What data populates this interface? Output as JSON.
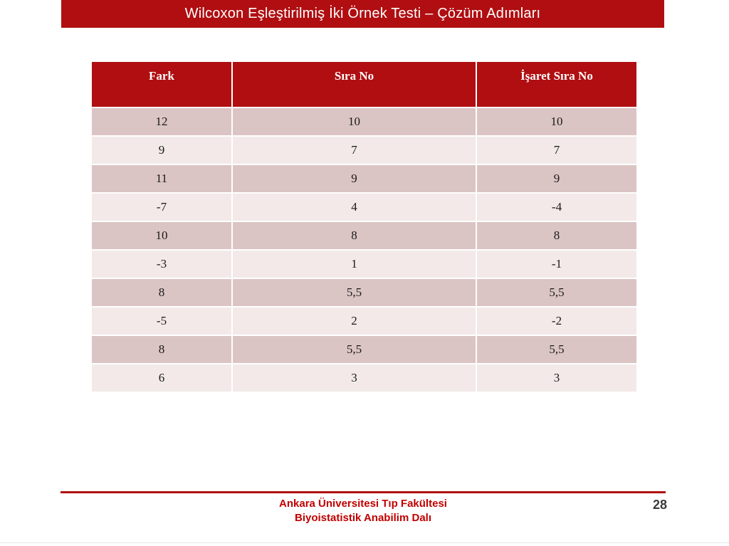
{
  "slide": {
    "title": "Wilcoxon Eşleştirilmiş İki Örnek Testi – Çözüm Adımları",
    "page_number": "28",
    "footer": {
      "line1": "Ankara Üniversitesi Tıp Fakültesi",
      "line2": "Biyoistatistik Anabilim Dalı"
    }
  },
  "table": {
    "headers": [
      "Fark",
      "Sıra No",
      "İşaret Sıra No"
    ],
    "rows": [
      [
        "12",
        "10",
        "10"
      ],
      [
        "9",
        "7",
        "7"
      ],
      [
        "11",
        "9",
        "9"
      ],
      [
        "-7",
        "4",
        "-4"
      ],
      [
        "10",
        "8",
        "8"
      ],
      [
        "-3",
        "1",
        "-1"
      ],
      [
        "8",
        "5,5",
        "5,5"
      ],
      [
        "-5",
        "2",
        "-2"
      ],
      [
        "8",
        "5,5",
        "5,5"
      ],
      [
        "6",
        "3",
        "3"
      ]
    ]
  },
  "colors": {
    "accent_red": "#b00e11",
    "footer_text_red": "#c00000",
    "row_band_dark": "#dbc4c4",
    "row_band_light": "#f2e9e8",
    "page_number_gray": "#3c3c3c"
  }
}
